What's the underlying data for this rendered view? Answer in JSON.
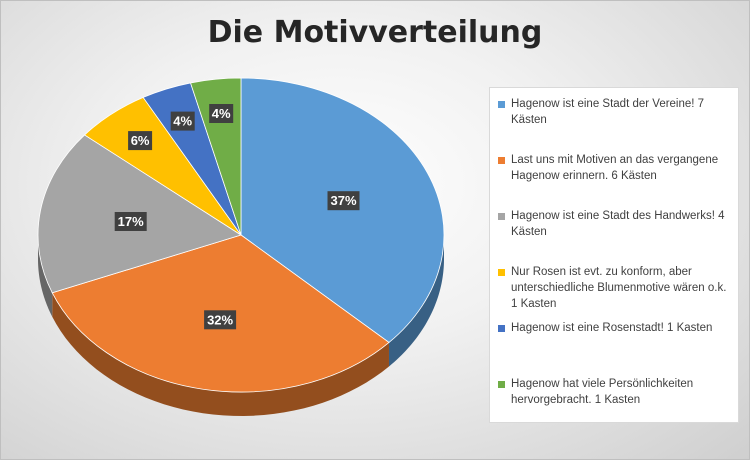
{
  "chart_data": {
    "type": "pie",
    "title": "Die Motivverteilung",
    "legend_position": "right",
    "slices": [
      {
        "label": "Hagenow ist eine Stadt der Vereine!  7 Kästen",
        "value": 37,
        "display": "37%",
        "color": "#5b9bd5"
      },
      {
        "label": " Last uns mit Motiven an das vergangene Hagenow erinnern.  6 Kästen",
        "value": 32,
        "display": "32%",
        "color": "#ed7d31"
      },
      {
        "label": "Hagenow ist eine Stadt des Handwerks!   4 Kästen",
        "value": 17,
        "display": "17%",
        "color": "#a5a5a5"
      },
      {
        "label": "Nur Rosen ist evt. zu konform, aber unterschiedliche Blumenmotive wären o.k. 1 Kasten",
        "value": 6,
        "display": "6%",
        "color": "#ffc000"
      },
      {
        "label": "Hagenow ist eine Rosenstadt! 1 Kasten",
        "value": 4,
        "display": "4%",
        "color": "#4472c4"
      },
      {
        "label": "Hagenow hat viele Persönlichkeiten hervorgebracht. 1 Kasten",
        "value": 4,
        "display": "4%",
        "color": "#70ad47"
      }
    ]
  }
}
